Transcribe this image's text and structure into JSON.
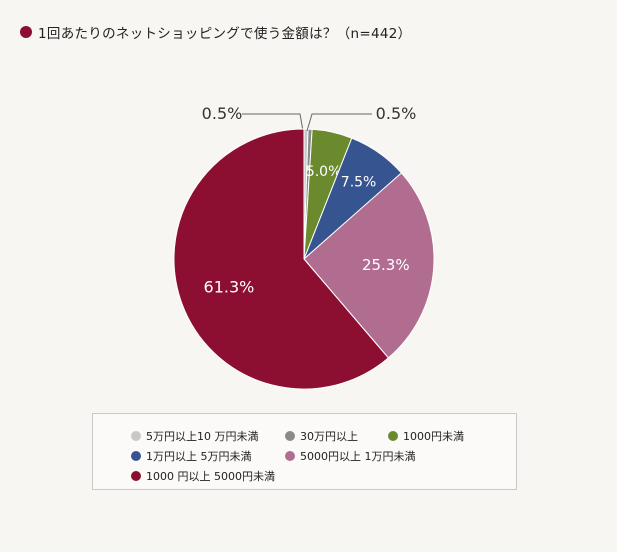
{
  "title": "1回あたりのネットショッピングで使う金額は？（n=442）",
  "colors": {
    "title_dot": "#8c0f32"
  },
  "chart_data": {
    "type": "pie",
    "title": "1回あたりのネットショッピングで使う金額は？（n=442）",
    "slices": [
      {
        "name": "5万円以上10万円未満",
        "value": 0.5,
        "label": "0.5%",
        "color": "#c7c7c7"
      },
      {
        "name": "30万円以上",
        "value": 0.5,
        "label": "0.5%",
        "color": "#8a8a8a"
      },
      {
        "name": "1000円未満",
        "value": 5.0,
        "label": "5.0%",
        "color": "#6b8a2e"
      },
      {
        "name": "1万円以上5万円未満",
        "value": 7.5,
        "label": "7.5%",
        "color": "#36548f"
      },
      {
        "name": "5000円以上1万円未満",
        "value": 25.3,
        "label": "25.3%",
        "color": "#b06d8f"
      },
      {
        "name": "1000円以上5000円未満",
        "value": 61.3,
        "label": "61.3%",
        "color": "#8c0f32"
      }
    ],
    "legend": [
      {
        "label": "5万円以上10 万円未満",
        "color": "#c7c7c7"
      },
      {
        "label": "30万円以上",
        "color": "#8a8a8a"
      },
      {
        "label": "1000円未満",
        "color": "#6b8a2e"
      },
      {
        "label": "1万円以上 5万円未満",
        "color": "#36548f"
      },
      {
        "label": "5000円以上 1万円未満",
        "color": "#b06d8f"
      },
      {
        "label": "1000 円以上 5000円未満",
        "color": "#8c0f32"
      }
    ],
    "legend_position": "bottom"
  }
}
